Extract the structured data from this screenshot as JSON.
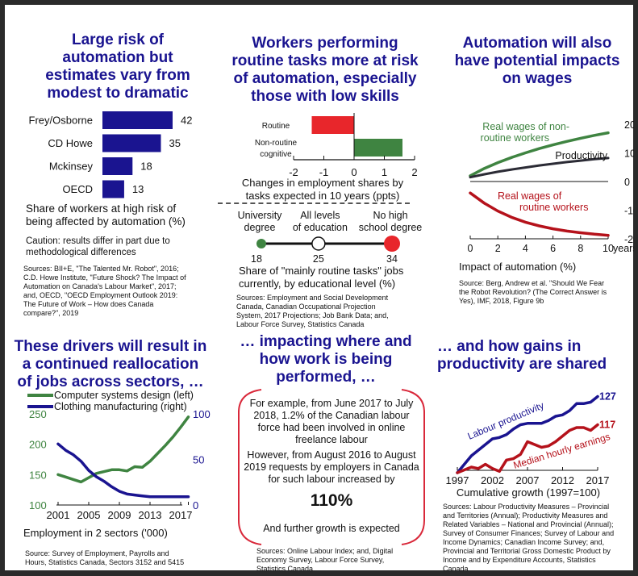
{
  "panels": {
    "risk": {
      "title_lines": [
        "Large risk of",
        "automation but",
        "estimates vary from",
        "modest to dramatic"
      ],
      "caption_lines": [
        "Share of workers at high risk of",
        "being affected by automation (%)"
      ],
      "caution_lines": [
        "Caution: results differ in part due to",
        "methodological differences"
      ],
      "source_lines": [
        "Sources: BII+E, \"The Talented Mr. Robot\", 2016;",
        "C.D. Howe Institute, \"Future Shock? The Impact of",
        "Automation on Canada's Labour Market\", 2017;",
        "and, OECD, \"OECD Employment Outlook 2019:",
        "The Future of Work – How does Canada",
        "compare?\", 2019"
      ]
    },
    "routine": {
      "title_lines": [
        "Workers performing",
        "routine tasks more at risk",
        "of automation, especially",
        "those with low skills"
      ],
      "caption_lines": [
        "Changes in employment shares by",
        "tasks expected in 10 years (ppts)"
      ],
      "edu_caption_lines": [
        "Share of \"mainly routine tasks\" jobs",
        "currently, by educational level (%)"
      ],
      "source_lines": [
        "Sources: Employment and Social Development",
        "Canada, Canadian Occupational Projection",
        "System, 2017 Projections; Job Bank Data; and,",
        "Labour Force Survey, Statistics Canada"
      ]
    },
    "wages": {
      "title_lines": [
        "Automation will also",
        "have potential impacts",
        "on wages"
      ],
      "caption": "Impact of automation (%)",
      "source_lines": [
        "Source: Berg, Andrew et al. \"Should We Fear",
        "the Robot Revolution? (The Correct Answer is",
        "Yes), IMF, 2018, Figure 9b"
      ]
    },
    "sectors": {
      "title_lines": [
        "These drivers will result in",
        "a continued reallocation",
        "of jobs across sectors, …"
      ],
      "caption": "Employment in 2 sectors ('000)",
      "source_lines": [
        "Source: Survey of Employment, Payrolls and",
        "Hours, Statistics Canada, Sectors 3152 and 5415"
      ]
    },
    "work": {
      "title_lines": [
        "… impacting where and",
        "how work is being",
        "performed, …"
      ],
      "para1_lines": [
        "For example, from June 2017 to July",
        "2018, 1.2% of the Canadian labour",
        "force had been involved in online",
        "freelance labour"
      ],
      "para2_lines": [
        "However, from August 2016 to August",
        "2019 requests by employers in Canada",
        "for such labour increased by"
      ],
      "big_stat": "110%",
      "para3": "And further growth is expected",
      "source_lines": [
        "Sources: Online Labour Index; and, Digital",
        "Economy Survey, Labour Force Survey,",
        "Statistics Canada"
      ]
    },
    "gains": {
      "title_lines": [
        "… and how gains in",
        "productivity are shared"
      ],
      "caption": "Cumulative growth (1997=100)",
      "source_lines": [
        "Sources: Labour Productivity Measures – Provincial",
        "and Territories (Annual); Productivity Measures and",
        "Related Variables – National and Provincial (Annual);",
        "Survey of Consumer Finances; Survey of Labour and",
        "Income Dynamics; Canadian Income Survey; and,",
        "Provincial and Territorial Gross Domestic Product by",
        "Income and by Expenditure Accounts, Statistics",
        "Canada"
      ]
    }
  },
  "colors": {
    "title": "#1a1490",
    "navy_bar": "#1a1490",
    "red": "#e8262b",
    "green": "#3f8441",
    "dark_red": "#b5121b",
    "dark_line": "#2b2b35"
  },
  "chart_data": [
    {
      "id": "risk",
      "type": "bar",
      "orientation": "horizontal",
      "categories": [
        "Frey/Osborne",
        "CD Howe",
        "Mckinsey",
        "OECD"
      ],
      "values": [
        42,
        35,
        18,
        13
      ],
      "data_labels": [
        "42",
        "35",
        "18",
        "13"
      ],
      "xlim": [
        0,
        45
      ],
      "title": "Share of workers at high risk of being affected by automation (%)"
    },
    {
      "id": "routine",
      "type": "bar",
      "orientation": "horizontal",
      "categories": [
        "Routine",
        "Non-routine cognitive"
      ],
      "category_label_lines": [
        [
          "Routine"
        ],
        [
          "Non-routine",
          "cognitive"
        ]
      ],
      "values": [
        -1.4,
        1.6
      ],
      "colors": [
        "#e8262b",
        "#3f8441"
      ],
      "xlim": [
        -2,
        2
      ],
      "xticks": [
        -2,
        -1,
        0,
        1,
        2
      ],
      "xtick_labels": [
        "-2",
        "-1",
        "0",
        "1",
        "2"
      ],
      "xlabel": "Changes in employment shares by tasks expected in 10 years (ppts)"
    },
    {
      "id": "education",
      "type": "scatter",
      "categories": [
        "University degree",
        "All levels of education",
        "No high school degree"
      ],
      "category_label_lines": [
        [
          "University",
          "degree"
        ],
        [
          "All levels",
          "of education"
        ],
        [
          "No high",
          "school degree"
        ]
      ],
      "values": [
        18,
        25,
        34
      ],
      "value_labels": [
        "18",
        "25",
        "34"
      ],
      "xlim": [
        18,
        34
      ],
      "point_colors": [
        "#3f8441",
        "#ffffff",
        "#e8262b"
      ],
      "xlabel": "Share of \"mainly routine tasks\" jobs currently, by educational level (%)"
    },
    {
      "id": "wages",
      "type": "line",
      "x": [
        0,
        1,
        2,
        3,
        4,
        5,
        6,
        7,
        8,
        9,
        10
      ],
      "series": [
        {
          "name": "Real wages of non-routine workers",
          "label_lines": [
            "Real wages of non-",
            "routine workers"
          ],
          "color": "#3f8441",
          "values": [
            2,
            4.5,
            6.6,
            8.4,
            10,
            11.5,
            12.8,
            14,
            15.1,
            16.1,
            17
          ]
        },
        {
          "name": "Productivity",
          "label_lines": [
            "Productivity"
          ],
          "color": "#2b2b35",
          "values": [
            1.5,
            2.5,
            3.4,
            4.2,
            4.9,
            5.6,
            6.2,
            6.8,
            7.3,
            7.8,
            8.2
          ]
        },
        {
          "name": "Real wages of routine workers",
          "label_lines": [
            "Real wages of",
            "routine workers"
          ],
          "color": "#b5121b",
          "values": [
            -4,
            -7.5,
            -10.3,
            -12.5,
            -14.2,
            -15.5,
            -16.5,
            -17.3,
            -17.9,
            -18.4,
            -18.8
          ]
        }
      ],
      "ylim": [
        -20,
        20
      ],
      "yticks": [
        20,
        10,
        0,
        -10,
        -20
      ],
      "ytick_labels": [
        "20",
        "10",
        "0",
        "-10",
        "-20"
      ],
      "xticks": [
        0,
        2,
        4,
        6,
        8,
        10
      ],
      "xtick_labels": [
        "0",
        "2",
        "4",
        "6",
        "8",
        "10"
      ],
      "xunit": "years",
      "yaxis": "right",
      "title": "Impact of automation (%)"
    },
    {
      "id": "sectors",
      "type": "line",
      "x": [
        2001,
        2002,
        2003,
        2004,
        2005,
        2006,
        2007,
        2008,
        2009,
        2010,
        2011,
        2012,
        2013,
        2014,
        2015,
        2016,
        2017,
        2018
      ],
      "series": [
        {
          "name": "Computer systems design (left)",
          "color": "#3f8441",
          "axis": "left",
          "values": [
            150,
            146,
            142,
            138,
            145,
            152,
            155,
            158,
            158,
            156,
            163,
            162,
            172,
            185,
            198,
            212,
            228,
            245
          ]
        },
        {
          "name": "Clothing manufacturing (right)",
          "color": "#1a1490",
          "axis": "right",
          "values": [
            67,
            60,
            55,
            48,
            38,
            31,
            26,
            20,
            15,
            12,
            11,
            10,
            9,
            9,
            9,
            9,
            9,
            9
          ]
        }
      ],
      "y_left": {
        "lim": [
          100,
          250
        ],
        "ticks": [
          250,
          200,
          150,
          100
        ],
        "tick_labels": [
          "250",
          "200",
          "150",
          "100"
        ],
        "color": "#3f8441"
      },
      "y_right": {
        "lim": [
          0,
          100
        ],
        "ticks": [
          100,
          50,
          0
        ],
        "tick_labels": [
          "100",
          "50",
          "0"
        ],
        "color": "#1a1490"
      },
      "xticks": [
        2001,
        2005,
        2009,
        2013,
        2017
      ],
      "xtick_labels": [
        "2001",
        "2005",
        "2009",
        "2013",
        "2017"
      ],
      "legend": "top",
      "title": "Employment in 2 sectors ('000)"
    },
    {
      "id": "gains",
      "type": "line",
      "x": [
        1997,
        1998,
        1999,
        2000,
        2001,
        2002,
        2003,
        2004,
        2005,
        2006,
        2007,
        2008,
        2009,
        2010,
        2011,
        2012,
        2013,
        2014,
        2015,
        2016,
        2017
      ],
      "series": [
        {
          "name": "Labour productivity",
          "color": "#1a1490",
          "end_label": "127",
          "values": [
            100,
            103,
            106,
            108,
            110,
            112,
            112.5,
            113.5,
            115.5,
            117,
            117.5,
            117.5,
            117.5,
            118.5,
            120,
            120.5,
            122,
            124.5,
            124.5,
            125,
            127
          ]
        },
        {
          "name": "Median hourly earnings",
          "color": "#b5121b",
          "end_label": "117",
          "values": [
            100,
            101,
            102,
            101.5,
            103,
            101.5,
            100.5,
            104.5,
            105,
            106.5,
            111,
            110,
            109,
            109.5,
            111,
            113,
            115,
            116,
            116,
            115,
            117
          ]
        }
      ],
      "ylim": [
        100,
        130
      ],
      "xticks": [
        1997,
        2002,
        2007,
        2012,
        2017
      ],
      "xtick_labels": [
        "1997",
        "2002",
        "2007",
        "2012",
        "2017"
      ],
      "title": "Cumulative growth (1997=100)"
    }
  ]
}
